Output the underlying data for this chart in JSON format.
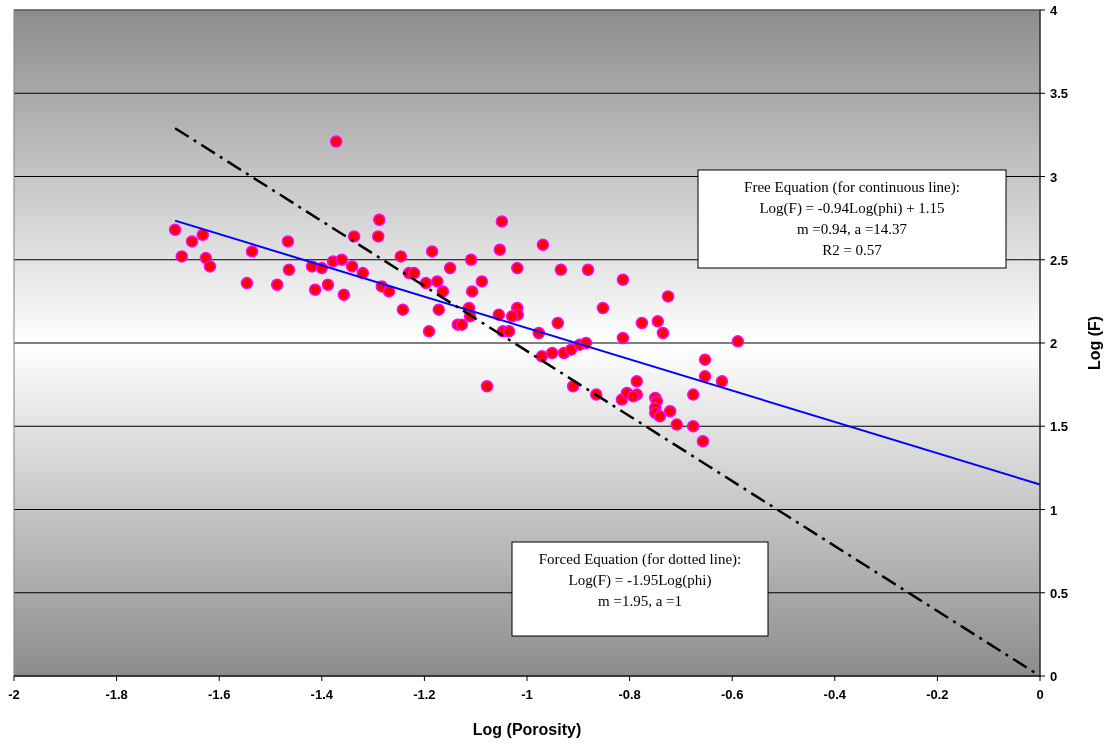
{
  "chart_data": {
    "type": "scatter",
    "xlabel": "Log (Porosity)",
    "ylabel": "Log (F)",
    "xlim": [
      -2,
      0
    ],
    "xticks": [
      -2,
      -1.8,
      -1.6,
      -1.4,
      -1.2,
      -1,
      -0.8,
      -0.6,
      -0.4,
      -0.2,
      0
    ],
    "ylim": [
      0,
      4
    ],
    "yticks": [
      0,
      0.5,
      1,
      1.5,
      2,
      2.5,
      3,
      3.5,
      4
    ],
    "grid": "y",
    "series": [
      {
        "marker": "circle",
        "color": "#ff0000",
        "x": [
          -1.686,
          -1.653,
          -1.632,
          -1.673,
          -1.626,
          -1.618,
          -1.536,
          -1.466,
          -1.546,
          -1.487,
          -1.464,
          -1.372,
          -1.419,
          -1.4,
          -1.413,
          -1.388,
          -1.378,
          -1.361,
          -1.341,
          -1.337,
          -1.357,
          -1.32,
          -1.288,
          -1.29,
          -1.283,
          -1.269,
          -1.246,
          -1.242,
          -1.23,
          -1.22,
          -1.197,
          -1.185,
          -1.175,
          -1.164,
          -1.172,
          -1.15,
          -1.191,
          -1.135,
          -1.049,
          -1.053,
          -0.969,
          -1.109,
          -1.019,
          -0.934,
          -0.881,
          -1.088,
          -1.107,
          -0.813,
          -0.725,
          -0.852,
          -1.113,
          -1.111,
          -1.127,
          -1.055,
          -1.019,
          -1.018,
          -1.029,
          -0.94,
          -0.977,
          -1.047,
          -1.035,
          -0.776,
          -0.745,
          -0.735,
          -0.813,
          -0.589,
          -0.971,
          -0.951,
          -0.928,
          -0.914,
          -0.897,
          -0.885,
          -1.078,
          -0.91,
          -0.865,
          -0.815,
          -0.805,
          -0.786,
          -0.793,
          -0.786,
          -0.75,
          -0.747,
          -0.75,
          -0.75,
          -0.741,
          -0.721,
          -0.708,
          -0.676,
          -0.657,
          -0.676,
          -0.653,
          -0.653,
          -0.62
        ],
        "values": [
          2.68,
          2.61,
          2.65,
          2.52,
          2.51,
          2.46,
          2.55,
          2.61,
          2.36,
          2.35,
          2.44,
          3.21,
          2.46,
          2.45,
          2.32,
          2.35,
          2.49,
          2.5,
          2.46,
          2.64,
          2.29,
          2.42,
          2.74,
          2.64,
          2.34,
          2.31,
          2.52,
          2.2,
          2.42,
          2.42,
          2.36,
          2.55,
          2.37,
          2.31,
          2.2,
          2.45,
          2.07,
          2.11,
          2.73,
          2.56,
          2.59,
          2.5,
          2.45,
          2.44,
          2.44,
          2.37,
          2.31,
          2.38,
          2.28,
          2.21,
          2.21,
          2.16,
          2.11,
          2.17,
          2.21,
          2.17,
          2.16,
          2.12,
          2.06,
          2.07,
          2.07,
          2.12,
          2.13,
          2.06,
          2.03,
          2.01,
          1.92,
          1.94,
          1.94,
          1.96,
          1.99,
          2,
          1.74,
          1.74,
          1.69,
          1.66,
          1.7,
          1.69,
          1.68,
          1.77,
          1.67,
          1.65,
          1.61,
          1.58,
          1.56,
          1.59,
          1.51,
          1.5,
          1.41,
          1.69,
          1.9,
          1.8,
          1.77
        ]
      },
      {
        "type": "line",
        "color": "#0000ff",
        "line_style": "solid",
        "x": [
          -1.686,
          0
        ],
        "values": [
          2.735,
          1.15
        ]
      },
      {
        "type": "line",
        "color": "#000000",
        "line_style": "dashed",
        "x": [
          -1.686,
          0
        ],
        "values": [
          3.29,
          0
        ]
      }
    ],
    "annotations": [
      "Free Equation (for continuous line):\nLog(F) = -0.94Log(phi) + 1.15\nm =0.94, a =14.37\nR2 = 0.57",
      "Forced Equation (for dotted line):\nLog(F) = -1.95Log(phi)\nm =1.95, a =1"
    ]
  }
}
